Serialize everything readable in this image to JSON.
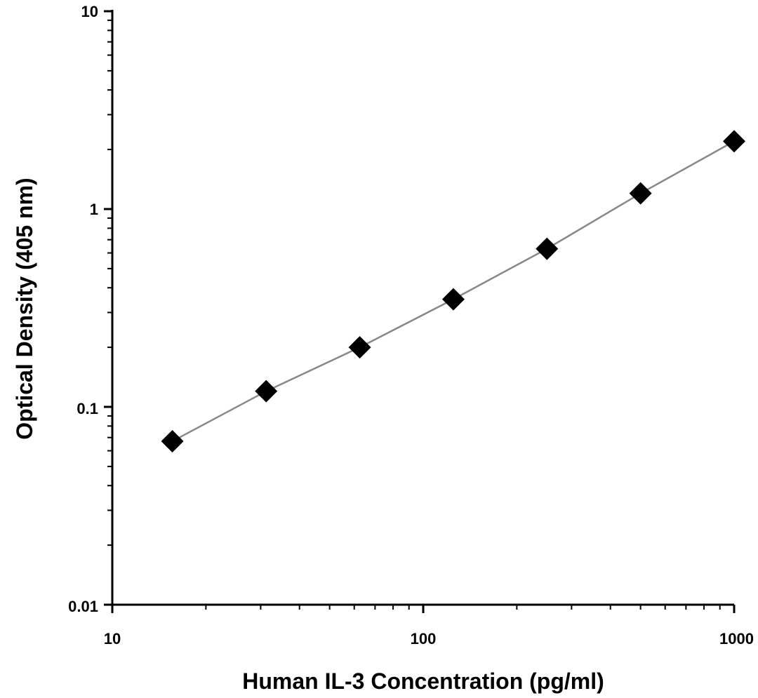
{
  "chart_data": {
    "type": "line",
    "title": "",
    "xlabel": "Human IL-3 Concentration (pg/ml)",
    "ylabel": "Optical Density (405 nm)",
    "x_scale": "log",
    "y_scale": "log",
    "xlim": [
      10,
      1000
    ],
    "ylim": [
      0.01,
      10
    ],
    "x_ticks": [
      "10",
      "100",
      "1000"
    ],
    "y_ticks": [
      "0.01",
      "0.1",
      "1",
      "10"
    ],
    "grid": false,
    "legend": "none",
    "marker": "diamond",
    "line_color": "#888888",
    "marker_color": "#000000",
    "series": [
      {
        "x": [
          15.6,
          31.25,
          62.5,
          125,
          250,
          500,
          1000
        ],
        "y": [
          0.067,
          0.12,
          0.2,
          0.35,
          0.63,
          1.2,
          2.2
        ]
      }
    ]
  }
}
